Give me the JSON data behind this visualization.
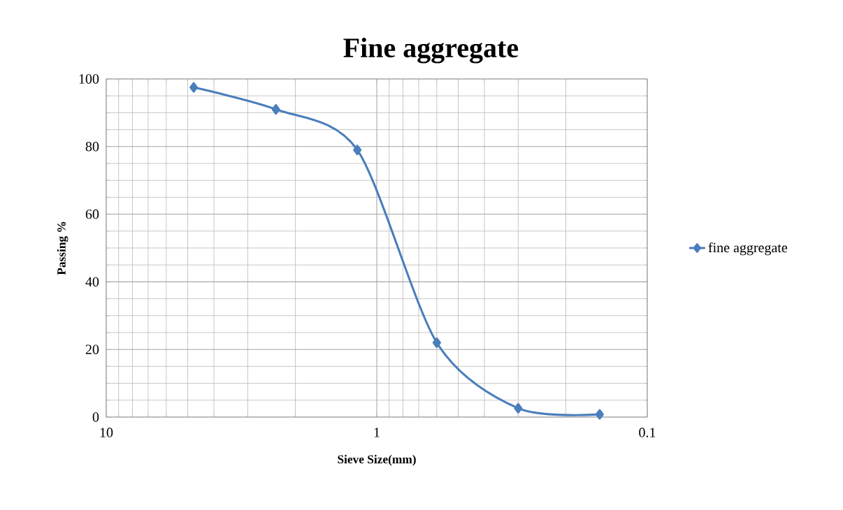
{
  "chart_data": {
    "type": "line",
    "title": "Fine aggregate",
    "xlabel": "Sieve Size(mm)",
    "ylabel": "Passing %",
    "x": [
      4.75,
      2.36,
      1.18,
      0.6,
      0.3,
      0.15
    ],
    "series": [
      {
        "name": "fine aggregate",
        "color": "#4a7ebb",
        "values": [
          97.5,
          91,
          79,
          22,
          2.6,
          0.8
        ]
      }
    ],
    "xlim": [
      10,
      0.1
    ],
    "xticks": [
      10,
      1,
      0.1
    ],
    "ylim": [
      0,
      100
    ],
    "yticks": [
      0,
      20,
      40,
      60,
      80,
      100
    ],
    "log": "x",
    "grid": true,
    "legend": "right",
    "marker": "diamond",
    "line_style": "solid"
  }
}
